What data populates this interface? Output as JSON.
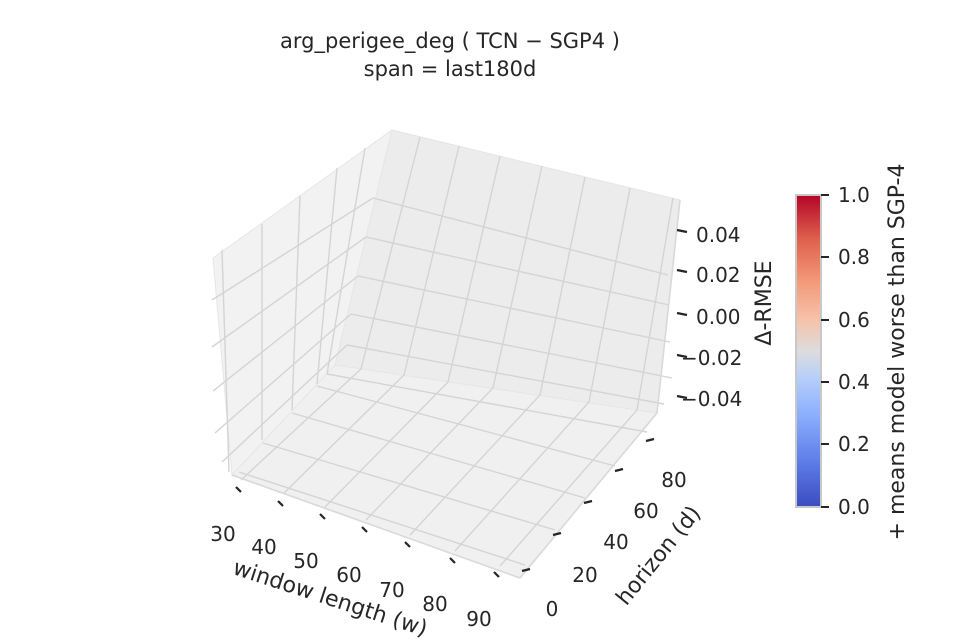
{
  "chart_data": {
    "type": "surface",
    "title": "arg_perigee_deg  ( TCN − SGP4 )",
    "subtitle": "span = last180d",
    "xlabel": "window length (w)",
    "ylabel": "horizon (d)",
    "zlabel": "Δ-RMSE",
    "x_ticks": [
      "30",
      "40",
      "50",
      "60",
      "70",
      "80",
      "90"
    ],
    "y_ticks": [
      "0",
      "20",
      "40",
      "60",
      "80"
    ],
    "z_ticks": [
      "0.04",
      "0.02",
      "0.00",
      "−0.02",
      "−0.04"
    ],
    "xlim": [
      25,
      95
    ],
    "ylim": [
      -5,
      95
    ],
    "zlim": [
      -0.055,
      0.055
    ],
    "grid": true,
    "series": [],
    "colorbar": {
      "label": "+ means model worse than SGP-4",
      "colormap": "coolwarm",
      "range": [
        0.0,
        1.0
      ],
      "ticks": [
        "1.0",
        "0.8",
        "0.6",
        "0.4",
        "0.2",
        "0.0"
      ],
      "colors": {
        "low": "#3b4cc0",
        "mid": "#dddddd",
        "high": "#b40426"
      }
    }
  }
}
